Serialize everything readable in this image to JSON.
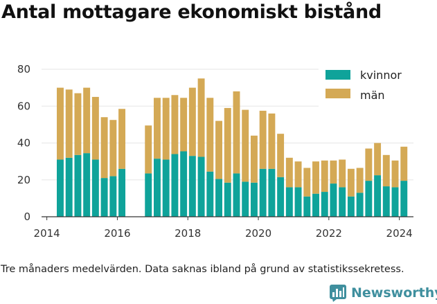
{
  "title": "Antal mottagare ekonomiskt bistånd",
  "caption": "Tre månaders medelvärden. Data saknas ibland på grund av statistikssekretess.",
  "brand": {
    "name": "Newsworthy",
    "icon": "bar-chart-logo-icon",
    "color": "#3f8f9e"
  },
  "chart_data": {
    "type": "bar",
    "stacked": true,
    "title": "Antal mottagare ekonomiskt bistånd",
    "xlabel": "",
    "ylabel": "",
    "xlim": [
      2013.85,
      2024.4
    ],
    "ylim": [
      0,
      80
    ],
    "yticks": [
      0,
      20,
      40,
      60,
      80
    ],
    "xticks": [
      2014,
      2016,
      2018,
      2020,
      2022,
      2024
    ],
    "grid": true,
    "legend_position": "top-right",
    "x": [
      2014.38,
      2014.63,
      2014.88,
      2015.13,
      2015.38,
      2015.63,
      2015.88,
      2016.13,
      2016.88,
      2017.13,
      2017.38,
      2017.63,
      2017.88,
      2018.13,
      2018.38,
      2018.63,
      2018.88,
      2019.13,
      2019.38,
      2019.63,
      2019.88,
      2020.13,
      2020.38,
      2020.63,
      2020.88,
      2021.13,
      2021.38,
      2021.63,
      2021.88,
      2022.13,
      2022.38,
      2022.63,
      2022.88,
      2023.13,
      2023.38,
      2023.63,
      2023.88,
      2024.13
    ],
    "series": [
      {
        "name": "kvinnor",
        "color": "#0fa39a",
        "values": [
          31,
          32,
          33.5,
          34.5,
          31,
          21,
          22,
          26,
          23.5,
          31.5,
          31,
          34,
          35.5,
          33,
          32.5,
          24.5,
          20.5,
          18.5,
          23.5,
          19,
          18.5,
          26,
          26,
          21.5,
          16,
          16,
          11,
          12.5,
          13.5,
          18,
          16,
          11,
          13,
          19.5,
          22.5,
          16.5,
          16,
          19.5
        ]
      },
      {
        "name": "män",
        "color": "#d4a955",
        "values": [
          39,
          37,
          33.5,
          35.5,
          34,
          33,
          30.5,
          32.5,
          26,
          33,
          33.5,
          32,
          29,
          37,
          42.5,
          40,
          31.5,
          40.5,
          44.5,
          39,
          25.5,
          31.5,
          30,
          23.5,
          16,
          14,
          15.5,
          17.5,
          17,
          12.5,
          15,
          15,
          13.5,
          17.5,
          17.5,
          17,
          14.5,
          18.5
        ]
      }
    ]
  }
}
